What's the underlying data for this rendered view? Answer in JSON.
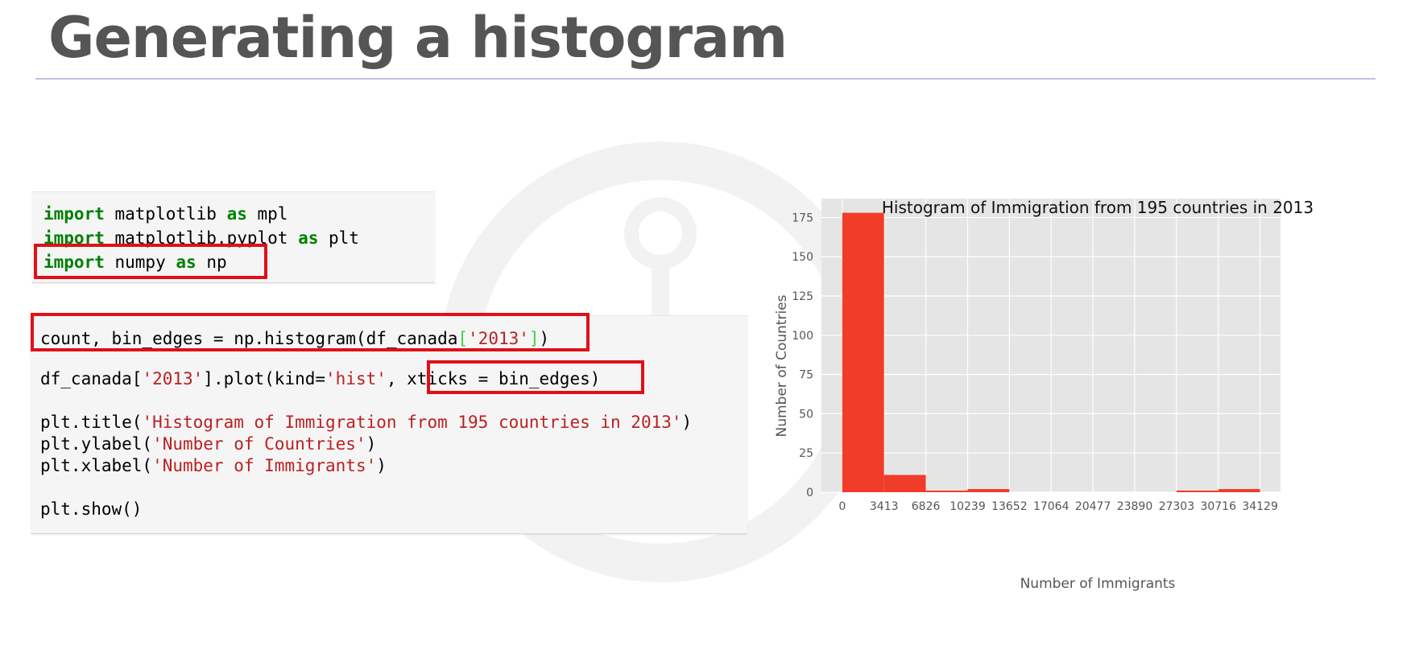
{
  "slide": {
    "title": "Generating a histogram"
  },
  "cell1": {
    "lines": [
      [
        {
          "t": "import",
          "c": "kw"
        },
        {
          "t": " matplotlib "
        },
        {
          "t": "as",
          "c": "kw"
        },
        {
          "t": " mpl"
        }
      ],
      [
        {
          "t": "import",
          "c": "kw"
        },
        {
          "t": " matplotlib.pyplot "
        },
        {
          "t": "as",
          "c": "kw"
        },
        {
          "t": " plt"
        }
      ],
      [
        {
          "t": "import",
          "c": "kw"
        },
        {
          "t": " numpy "
        },
        {
          "t": "as",
          "c": "kw"
        },
        {
          "t": " np"
        }
      ]
    ]
  },
  "cell2": {
    "lines": [
      [
        {
          "t": "count, bin_edges = np.histogram(df_canada"
        },
        {
          "t": "[",
          "c": "br"
        },
        {
          "t": "'2013'",
          "c": "str"
        },
        {
          "t": "]",
          "c": "br"
        },
        {
          "t": ")"
        }
      ],
      [
        {
          "t": "df_canada["
        },
        {
          "t": "'2013'",
          "c": "str"
        },
        {
          "t": "].plot(kind="
        },
        {
          "t": "'hist'",
          "c": "str"
        },
        {
          "t": ", xticks = bin_edges)"
        }
      ],
      [
        {
          "t": "plt.title("
        },
        {
          "t": "'Histogram of Immigration from 195 countries in 2013'",
          "c": "str"
        },
        {
          "t": ")"
        }
      ],
      [
        {
          "t": "plt.ylabel("
        },
        {
          "t": "'Number of Countries'",
          "c": "str"
        },
        {
          "t": ")"
        }
      ],
      [
        {
          "t": "plt.xlabel("
        },
        {
          "t": "'Number of Immigrants'",
          "c": "str"
        },
        {
          "t": ")"
        }
      ],
      [
        {
          "t": "plt.show()"
        }
      ]
    ]
  },
  "colors": {
    "highlight": "#e01018",
    "bar": "#f03c28",
    "plot_bg": "#e5e5e5",
    "grid": "#ffffff"
  },
  "chart_data": {
    "type": "bar",
    "title": "Histogram of Immigration from 195 countries in 2013",
    "xlabel": "Number of Immigrants",
    "ylabel": "Number of Countries",
    "bin_edges": [
      0,
      3413,
      6826,
      10239,
      13652,
      17064,
      20477,
      23890,
      27303,
      30716,
      34129
    ],
    "x_tick_labels": [
      "0",
      "3413",
      "6826",
      "10239",
      "13652",
      "17064",
      "20477",
      "23890",
      "27303",
      "30716",
      "34129"
    ],
    "counts": [
      178,
      11,
      1,
      2,
      0,
      0,
      0,
      0,
      1,
      2
    ],
    "y_ticks": [
      0,
      25,
      50,
      75,
      100,
      125,
      150,
      175
    ],
    "ylim": [
      0,
      187
    ],
    "xlim": [
      -1700,
      35800
    ],
    "grid": true,
    "legend": "none"
  }
}
